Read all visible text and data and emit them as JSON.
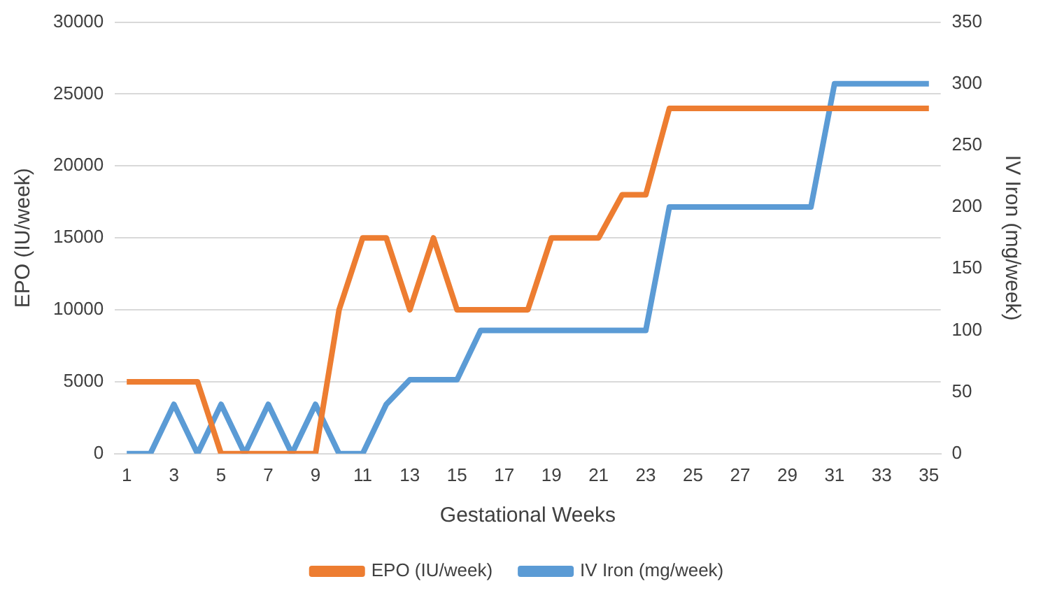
{
  "chart_data": {
    "type": "line",
    "xlabel": "Gestational Weeks",
    "ylabel": "EPO (IU/week)",
    "y2label": "IV Iron (mg/week)",
    "x": [
      1,
      2,
      3,
      4,
      5,
      6,
      7,
      8,
      9,
      10,
      11,
      12,
      13,
      14,
      15,
      16,
      17,
      18,
      19,
      20,
      21,
      22,
      23,
      24,
      25,
      26,
      27,
      28,
      29,
      30,
      31,
      32,
      33,
      34,
      35
    ],
    "xlim": [
      0.5,
      35.5
    ],
    "xticks": [
      1,
      3,
      5,
      7,
      9,
      11,
      13,
      15,
      17,
      19,
      21,
      23,
      25,
      27,
      29,
      31,
      33,
      35
    ],
    "series": [
      {
        "name": "EPO (IU/week)",
        "color": "#ed7d31",
        "values": [
          5000,
          5000,
          5000,
          5000,
          0,
          0,
          0,
          0,
          0,
          10000,
          15000,
          15000,
          10000,
          15000,
          10000,
          10000,
          10000,
          10000,
          15000,
          15000,
          15000,
          18000,
          18000,
          24000,
          24000,
          24000,
          24000,
          24000,
          24000,
          24000,
          24000,
          24000,
          24000,
          24000,
          24000
        ]
      },
      {
        "name": "IV Iron (mg/week)",
        "color": "#5b9bd5",
        "axis": "y2",
        "values": [
          0,
          0,
          40,
          0,
          40,
          0,
          40,
          0,
          40,
          0,
          0,
          40,
          60,
          60,
          60,
          100,
          100,
          100,
          100,
          100,
          100,
          100,
          100,
          200,
          200,
          200,
          200,
          200,
          200,
          200,
          300,
          300,
          300,
          300,
          300
        ]
      }
    ],
    "ylim": [
      0,
      30000
    ],
    "yticks": [
      0,
      5000,
      10000,
      15000,
      20000,
      25000,
      30000
    ],
    "y2lim": [
      0,
      350
    ],
    "y2ticks": [
      0,
      50,
      100,
      150,
      200,
      250,
      300,
      350
    ],
    "grid": "y",
    "legend": "bottom",
    "marker": "none",
    "line_style": "solid"
  }
}
